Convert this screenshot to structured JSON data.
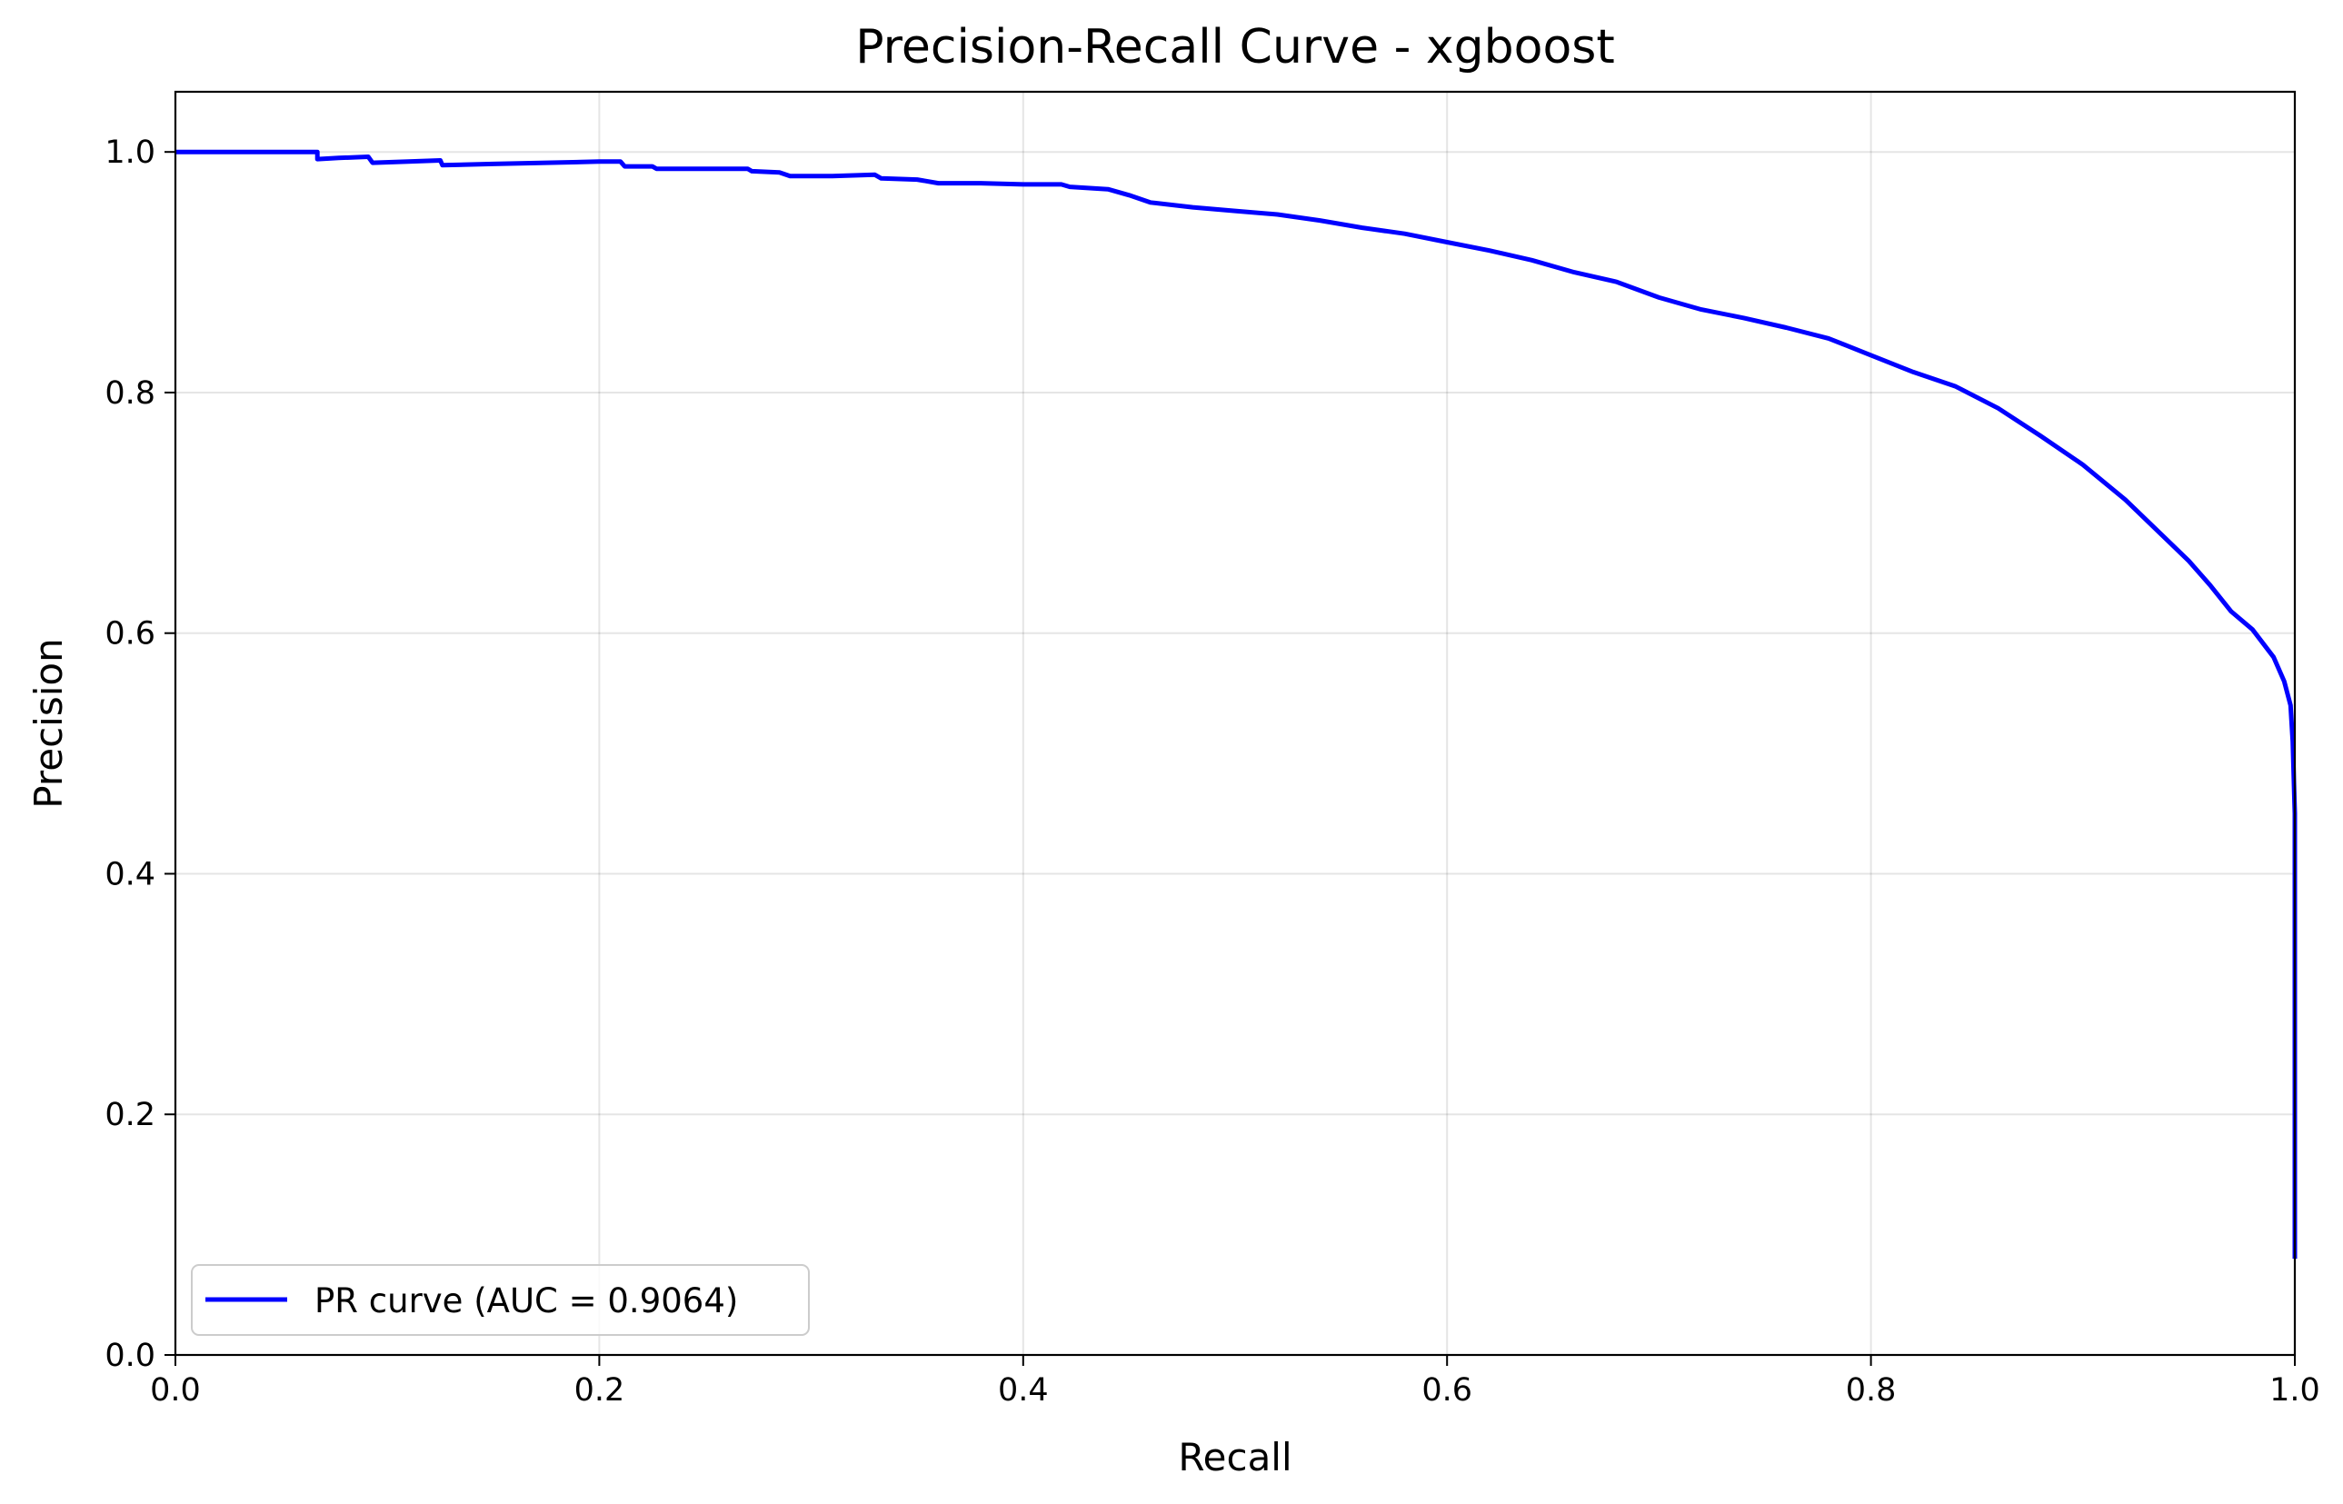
{
  "chart_data": {
    "type": "line",
    "title": "Precision-Recall Curve - xgboost",
    "xlabel": "Recall",
    "ylabel": "Precision",
    "xlim": [
      0.0,
      1.0
    ],
    "ylim": [
      0.0,
      1.05
    ],
    "xticks": [
      "0.0",
      "0.2",
      "0.4",
      "0.6",
      "0.8",
      "1.0"
    ],
    "yticks": [
      "0.0",
      "0.2",
      "0.4",
      "0.6",
      "0.8",
      "1.0"
    ],
    "grid": true,
    "legend_position": "lower-left",
    "series": [
      {
        "name": "PR curve (AUC = 0.9064)",
        "color": "#0000ff",
        "points": [
          [
            0.0,
            1.0
          ],
          [
            0.067,
            1.0
          ],
          [
            0.067,
            0.994
          ],
          [
            0.077,
            0.995
          ],
          [
            0.091,
            0.996
          ],
          [
            0.093,
            0.991
          ],
          [
            0.11,
            0.992
          ],
          [
            0.125,
            0.993
          ],
          [
            0.126,
            0.989
          ],
          [
            0.15,
            0.99
          ],
          [
            0.175,
            0.991
          ],
          [
            0.2,
            0.992
          ],
          [
            0.21,
            0.992
          ],
          [
            0.212,
            0.988
          ],
          [
            0.225,
            0.988
          ],
          [
            0.227,
            0.986
          ],
          [
            0.24,
            0.986
          ],
          [
            0.26,
            0.986
          ],
          [
            0.27,
            0.986
          ],
          [
            0.272,
            0.984
          ],
          [
            0.285,
            0.983
          ],
          [
            0.29,
            0.98
          ],
          [
            0.31,
            0.98
          ],
          [
            0.33,
            0.981
          ],
          [
            0.333,
            0.978
          ],
          [
            0.35,
            0.977
          ],
          [
            0.36,
            0.974
          ],
          [
            0.38,
            0.974
          ],
          [
            0.4,
            0.973
          ],
          [
            0.418,
            0.973
          ],
          [
            0.422,
            0.971
          ],
          [
            0.44,
            0.969
          ],
          [
            0.45,
            0.964
          ],
          [
            0.46,
            0.958
          ],
          [
            0.48,
            0.954
          ],
          [
            0.5,
            0.951
          ],
          [
            0.52,
            0.948
          ],
          [
            0.54,
            0.943
          ],
          [
            0.56,
            0.937
          ],
          [
            0.58,
            0.932
          ],
          [
            0.6,
            0.925
          ],
          [
            0.62,
            0.918
          ],
          [
            0.64,
            0.91
          ],
          [
            0.66,
            0.9
          ],
          [
            0.68,
            0.892
          ],
          [
            0.7,
            0.879
          ],
          [
            0.72,
            0.869
          ],
          [
            0.74,
            0.862
          ],
          [
            0.76,
            0.854
          ],
          [
            0.78,
            0.845
          ],
          [
            0.8,
            0.831
          ],
          [
            0.82,
            0.817
          ],
          [
            0.84,
            0.805
          ],
          [
            0.86,
            0.787
          ],
          [
            0.88,
            0.764
          ],
          [
            0.9,
            0.74
          ],
          [
            0.92,
            0.711
          ],
          [
            0.94,
            0.677
          ],
          [
            0.95,
            0.66
          ],
          [
            0.96,
            0.64
          ],
          [
            0.97,
            0.618
          ],
          [
            0.98,
            0.603
          ],
          [
            0.99,
            0.58
          ],
          [
            0.995,
            0.56
          ],
          [
            0.998,
            0.54
          ],
          [
            0.999,
            0.51
          ],
          [
            1.0,
            0.45
          ],
          [
            1.0,
            0.3
          ],
          [
            1.0,
            0.08
          ]
        ]
      }
    ]
  }
}
